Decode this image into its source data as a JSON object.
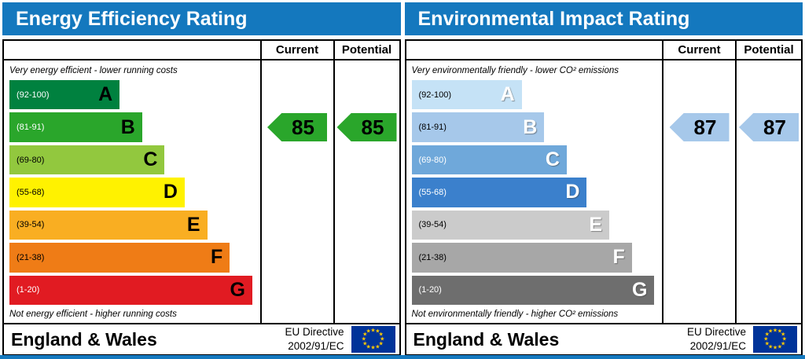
{
  "page": {
    "header_bg": "#1478be"
  },
  "eu_flag": {
    "bg": "#003399",
    "star_color": "#ffcc00"
  },
  "panels": [
    {
      "title": "Energy Efficiency Rating",
      "columns": {
        "current": "Current",
        "potential": "Potential"
      },
      "top_note": "Very energy efficient - lower running costs",
      "bottom_note": "Not energy efficient - higher running costs",
      "bands": [
        {
          "letter": "A",
          "range": "(92-100)",
          "color": "#00813f",
          "width_pct": 44,
          "range_color": "#ffffff",
          "letter_color": "#000000"
        },
        {
          "letter": "B",
          "range": "(81-91)",
          "color": "#2aa62b",
          "width_pct": 53,
          "range_color": "#ffffff",
          "letter_color": "#000000"
        },
        {
          "letter": "C",
          "range": "(69-80)",
          "color": "#92c83e",
          "width_pct": 62,
          "range_color": "#000000",
          "letter_color": "#000000"
        },
        {
          "letter": "D",
          "range": "(55-68)",
          "color": "#fff200",
          "width_pct": 70,
          "range_color": "#000000",
          "letter_color": "#000000"
        },
        {
          "letter": "E",
          "range": "(39-54)",
          "color": "#f9ae22",
          "width_pct": 79,
          "range_color": "#000000",
          "letter_color": "#000000"
        },
        {
          "letter": "F",
          "range": "(21-38)",
          "color": "#ef7c16",
          "width_pct": 88,
          "range_color": "#000000",
          "letter_color": "#000000"
        },
        {
          "letter": "G",
          "range": "(1-20)",
          "color": "#e11b22",
          "width_pct": 97,
          "range_color": "#ffffff",
          "letter_color": "#000000"
        }
      ],
      "current": {
        "value": "85",
        "arrow_color": "#2aa62b",
        "row": 1
      },
      "potential": {
        "value": "85",
        "arrow_color": "#2aa62b",
        "row": 1
      },
      "footer": {
        "region": "England & Wales",
        "directive_line1": "EU Directive",
        "directive_line2": "2002/91/EC"
      }
    },
    {
      "title": "Environmental Impact Rating",
      "columns": {
        "current": "Current",
        "potential": "Potential"
      },
      "top_note": "Very environmentally friendly - lower CO² emissions",
      "bottom_note": "Not environmentally friendly - higher CO² emissions",
      "bands": [
        {
          "letter": "A",
          "range": "(92-100)",
          "color": "#c5e2f6",
          "width_pct": 44,
          "range_color": "#000000",
          "letter_color": "#ffffff"
        },
        {
          "letter": "B",
          "range": "(81-91)",
          "color": "#a6c8ea",
          "width_pct": 53,
          "range_color": "#000000",
          "letter_color": "#ffffff"
        },
        {
          "letter": "C",
          "range": "(69-80)",
          "color": "#6fa8da",
          "width_pct": 62,
          "range_color": "#ffffff",
          "letter_color": "#ffffff"
        },
        {
          "letter": "D",
          "range": "(55-68)",
          "color": "#3b80cc",
          "width_pct": 70,
          "range_color": "#ffffff",
          "letter_color": "#ffffff"
        },
        {
          "letter": "E",
          "range": "(39-54)",
          "color": "#cbcbcb",
          "width_pct": 79,
          "range_color": "#000000",
          "letter_color": "#ffffff"
        },
        {
          "letter": "F",
          "range": "(21-38)",
          "color": "#a7a7a7",
          "width_pct": 88,
          "range_color": "#000000",
          "letter_color": "#ffffff"
        },
        {
          "letter": "G",
          "range": "(1-20)",
          "color": "#6e6e6e",
          "width_pct": 97,
          "range_color": "#ffffff",
          "letter_color": "#ffffff"
        }
      ],
      "current": {
        "value": "87",
        "arrow_color": "#a6c8ea",
        "row": 1
      },
      "potential": {
        "value": "87",
        "arrow_color": "#a6c8ea",
        "row": 1
      },
      "footer": {
        "region": "England & Wales",
        "directive_line1": "EU Directive",
        "directive_line2": "2002/91/EC"
      }
    }
  ],
  "chart_data": [
    {
      "type": "bar",
      "title": "Energy Efficiency Rating",
      "categories": [
        "A (92-100)",
        "B (81-91)",
        "C (69-80)",
        "D (55-68)",
        "E (39-54)",
        "F (21-38)",
        "G (1-20)"
      ],
      "series": [
        {
          "name": "Current",
          "value": 85,
          "band": "B"
        },
        {
          "name": "Potential",
          "value": 85,
          "band": "B"
        }
      ],
      "value_range": [
        1,
        100
      ],
      "notes": [
        "Very energy efficient - lower running costs",
        "Not energy efficient - higher running costs"
      ]
    },
    {
      "type": "bar",
      "title": "Environmental Impact Rating",
      "categories": [
        "A (92-100)",
        "B (81-91)",
        "C (69-80)",
        "D (55-68)",
        "E (39-54)",
        "F (21-38)",
        "G (1-20)"
      ],
      "series": [
        {
          "name": "Current",
          "value": 87,
          "band": "B"
        },
        {
          "name": "Potential",
          "value": 87,
          "band": "B"
        }
      ],
      "value_range": [
        1,
        100
      ],
      "notes": [
        "Very environmentally friendly - lower CO² emissions",
        "Not environmentally friendly - higher CO² emissions"
      ]
    }
  ]
}
